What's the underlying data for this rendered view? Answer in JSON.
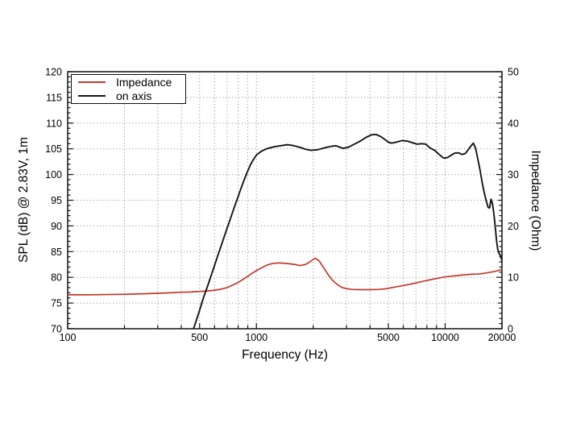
{
  "chart_data": {
    "type": "line",
    "title": "",
    "xlabel": "Frequency (Hz)",
    "ylabel_left": "SPL (dB) @ 2.83V, 1m",
    "ylabel_right": "Impedance (Ohm)",
    "x_scale": "log",
    "xlim": [
      100,
      20000
    ],
    "x_major_ticks": [
      100,
      500,
      1000,
      5000,
      10000,
      20000
    ],
    "x_minor_ticks": [
      200,
      300,
      400,
      600,
      700,
      800,
      900,
      2000,
      3000,
      4000,
      6000,
      7000,
      8000,
      9000
    ],
    "ylim_left": [
      70,
      120
    ],
    "y_left_tick_step_major": 5,
    "y_left_tick_step_minor": 1,
    "ylim_right": [
      0,
      50
    ],
    "y_right_label_step": 10,
    "y_right_tick_step_minor": 1,
    "grid": "dotted",
    "grid_color": "#9b9b9b",
    "frame_color": "#111111",
    "legend": {
      "position": "top-left",
      "entries": [
        {
          "label": "Impedance",
          "color": "#c23b2e"
        },
        {
          "label": "on axis",
          "color": "#151515"
        }
      ]
    },
    "series": [
      {
        "name": "Impedance",
        "axis": "right",
        "unit": "Ohm",
        "color": "#c23b2e",
        "width": 1.7,
        "points": [
          [
            100,
            6.6
          ],
          [
            130,
            6.6
          ],
          [
            160,
            6.65
          ],
          [
            200,
            6.7
          ],
          [
            250,
            6.8
          ],
          [
            300,
            6.9
          ],
          [
            350,
            7.0
          ],
          [
            400,
            7.1
          ],
          [
            450,
            7.15
          ],
          [
            500,
            7.25
          ],
          [
            550,
            7.35
          ],
          [
            600,
            7.5
          ],
          [
            650,
            7.7
          ],
          [
            700,
            8.0
          ],
          [
            750,
            8.5
          ],
          [
            800,
            9.0
          ],
          [
            850,
            9.6
          ],
          [
            900,
            10.2
          ],
          [
            950,
            10.8
          ],
          [
            1000,
            11.3
          ],
          [
            1070,
            11.9
          ],
          [
            1140,
            12.4
          ],
          [
            1220,
            12.7
          ],
          [
            1320,
            12.8
          ],
          [
            1450,
            12.7
          ],
          [
            1600,
            12.5
          ],
          [
            1700,
            12.3
          ],
          [
            1820,
            12.5
          ],
          [
            1920,
            13.0
          ],
          [
            2000,
            13.5
          ],
          [
            2060,
            13.7
          ],
          [
            2150,
            13.2
          ],
          [
            2260,
            12.0
          ],
          [
            2400,
            10.5
          ],
          [
            2550,
            9.3
          ],
          [
            2700,
            8.5
          ],
          [
            2850,
            8.0
          ],
          [
            3000,
            7.8
          ],
          [
            3200,
            7.65
          ],
          [
            3500,
            7.6
          ],
          [
            4000,
            7.6
          ],
          [
            4500,
            7.65
          ],
          [
            4900,
            7.8
          ],
          [
            5400,
            8.1
          ],
          [
            6000,
            8.4
          ],
          [
            6600,
            8.7
          ],
          [
            7200,
            9.0
          ],
          [
            8000,
            9.4
          ],
          [
            8800,
            9.7
          ],
          [
            9700,
            10.0
          ],
          [
            10600,
            10.2
          ],
          [
            11600,
            10.35
          ],
          [
            12700,
            10.5
          ],
          [
            13800,
            10.6
          ],
          [
            15000,
            10.65
          ],
          [
            16200,
            10.8
          ],
          [
            17400,
            11.0
          ],
          [
            18600,
            11.2
          ],
          [
            19300,
            11.35
          ],
          [
            20000,
            11.6
          ]
        ]
      },
      {
        "name": "on axis",
        "axis": "left",
        "unit": "dB",
        "color": "#151515",
        "width": 1.9,
        "points": [
          [
            464,
            70
          ],
          [
            480,
            71.6
          ],
          [
            500,
            73.6
          ],
          [
            525,
            76.1
          ],
          [
            550,
            78.2
          ],
          [
            575,
            80.3
          ],
          [
            600,
            82.3
          ],
          [
            625,
            84.3
          ],
          [
            650,
            86.1
          ],
          [
            675,
            87.9
          ],
          [
            700,
            89.6
          ],
          [
            725,
            91.2
          ],
          [
            750,
            92.8
          ],
          [
            775,
            94.3
          ],
          [
            800,
            95.7
          ],
          [
            825,
            97.1
          ],
          [
            850,
            98.4
          ],
          [
            875,
            99.6
          ],
          [
            900,
            100.7
          ],
          [
            930,
            101.9
          ],
          [
            960,
            102.8
          ],
          [
            1000,
            103.8
          ],
          [
            1060,
            104.5
          ],
          [
            1130,
            105.0
          ],
          [
            1240,
            105.4
          ],
          [
            1350,
            105.6
          ],
          [
            1460,
            105.8
          ],
          [
            1580,
            105.6
          ],
          [
            1700,
            105.3
          ],
          [
            1830,
            104.9
          ],
          [
            1950,
            104.7
          ],
          [
            2100,
            104.8
          ],
          [
            2300,
            105.2
          ],
          [
            2500,
            105.5
          ],
          [
            2640,
            105.6
          ],
          [
            2870,
            105.1
          ],
          [
            3070,
            105.3
          ],
          [
            3300,
            105.9
          ],
          [
            3550,
            106.5
          ],
          [
            3800,
            107.2
          ],
          [
            4050,
            107.7
          ],
          [
            4300,
            107.8
          ],
          [
            4550,
            107.4
          ],
          [
            4800,
            106.8
          ],
          [
            5000,
            106.3
          ],
          [
            5200,
            106.1
          ],
          [
            5500,
            106.3
          ],
          [
            5900,
            106.6
          ],
          [
            6300,
            106.5
          ],
          [
            6700,
            106.2
          ],
          [
            7100,
            105.9
          ],
          [
            7500,
            106.0
          ],
          [
            7900,
            105.9
          ],
          [
            8300,
            105.2
          ],
          [
            8800,
            104.7
          ],
          [
            9300,
            103.9
          ],
          [
            9800,
            103.2
          ],
          [
            10300,
            103.3
          ],
          [
            10800,
            103.8
          ],
          [
            11300,
            104.2
          ],
          [
            11800,
            104.2
          ],
          [
            12300,
            103.9
          ],
          [
            12800,
            104.1
          ],
          [
            13300,
            104.9
          ],
          [
            13800,
            105.7
          ],
          [
            14100,
            106.1
          ],
          [
            14500,
            105.1
          ],
          [
            14900,
            103.0
          ],
          [
            15300,
            100.9
          ],
          [
            15700,
            98.5
          ],
          [
            16100,
            96.5
          ],
          [
            16500,
            94.9
          ],
          [
            16900,
            93.6
          ],
          [
            17200,
            93.5
          ],
          [
            17500,
            95.2
          ],
          [
            17800,
            94.4
          ],
          [
            18100,
            92.5
          ],
          [
            18400,
            90.1
          ],
          [
            18700,
            87.3
          ],
          [
            19000,
            85.4
          ],
          [
            19300,
            84.6
          ],
          [
            19600,
            84.3
          ],
          [
            19800,
            83.8
          ],
          [
            20000,
            83.2
          ]
        ]
      }
    ]
  }
}
